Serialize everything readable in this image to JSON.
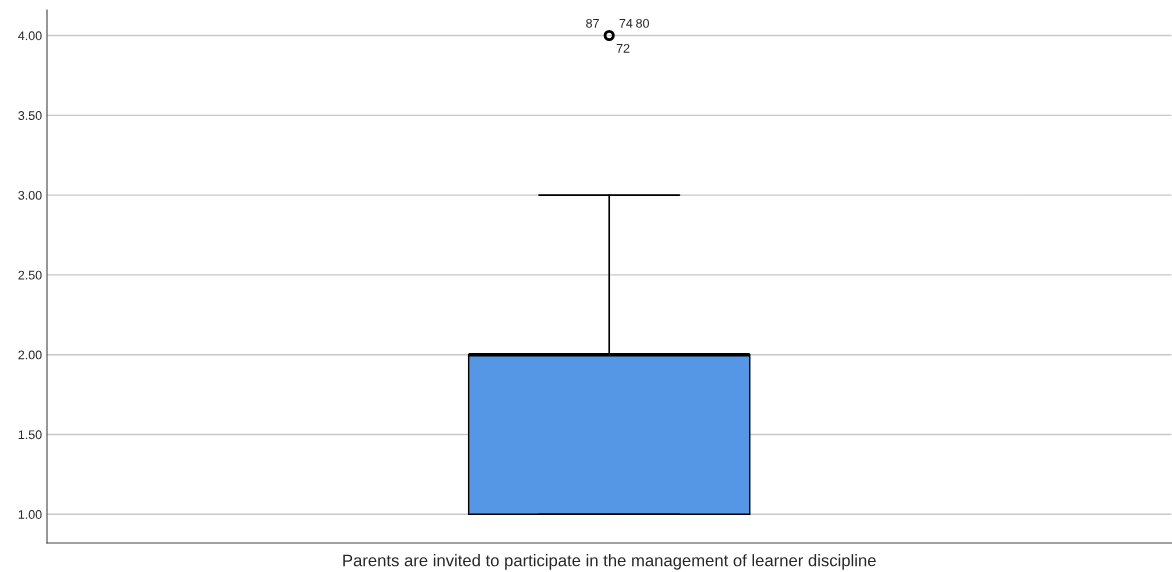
{
  "chart_data": {
    "type": "box",
    "categories": [
      "Parents are invited to participate in the management of learner discipline"
    ],
    "boxes": [
      {
        "low": 1,
        "q1": 1,
        "median": 2,
        "q3": 2,
        "high": 3,
        "outliers": [
          4
        ]
      }
    ],
    "color": "#5596e5",
    "ylim": [
      0.82,
      4.16
    ],
    "yticks": [
      {
        "value": 1,
        "label": "1.00"
      },
      {
        "value": 1.5,
        "label": "1.50"
      },
      {
        "value": 2,
        "label": "2.00"
      },
      {
        "value": 2.5,
        "label": "2.50"
      },
      {
        "value": 3,
        "label": "3.00"
      },
      {
        "value": 3.5,
        "label": "3.50"
      },
      {
        "value": 4,
        "label": "4.00"
      }
    ],
    "grid": "y",
    "annotations": [
      "87",
      "74",
      "80",
      "72"
    ]
  }
}
